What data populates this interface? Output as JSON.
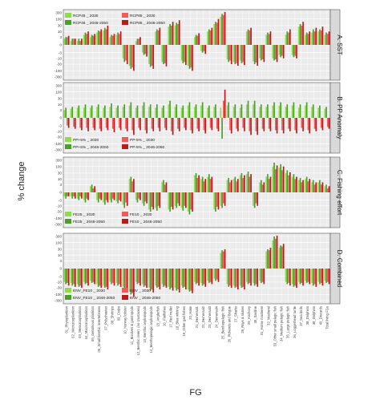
{
  "chart_data": {
    "type": "bar",
    "ylabel": "% change",
    "xlabel": "FG",
    "y_scale": "pseudo-log",
    "y_ticks": [
      300,
      100,
      30,
      10,
      3,
      0,
      -3,
      -10,
      -30,
      -100,
      -300
    ],
    "y_tick_labels": [
      "300",
      "100",
      "30",
      "10",
      "3",
      "0",
      "-3",
      "-10",
      "-30",
      "-100",
      "-300"
    ],
    "categories": [
      "01_Phytoplankton",
      "02_Microzooplankton",
      "03_Mesozooplankton",
      "04_Macrozooplankton",
      "05_Gelatinous plankton",
      "06_Small benthic invertebrates",
      "07_Polychaetes",
      "08_Shrimps",
      "09_Crabs",
      "10_Norway lobster",
      "11_Bivalves & gastropods",
      "12_Benthic invert. (no crustacea)",
      "13_Benthic cephalopods",
      "14_Benthopelagic cephalopods",
      "15_Anglerfish",
      "16_Flatfishes",
      "17_Red mullet",
      "18_Blue whiting",
      "19_Other gad fishes",
      "20_Hake",
      "21_Demersal1",
      "22_Demersal2",
      "23_Demersal3",
      "24_Demersal4",
      "25_Benthopelagic fish",
      "26_Pickerels and Bogue",
      "27_Sharks",
      "28_Rays & skates",
      "29_Anchovy",
      "30_Sardine",
      "31_Horse mackerel",
      "32_Mackerel",
      "33_Other small pelagic fish",
      "34_Medium pelagic fish",
      "35_Large pelagic fish",
      "36_Loggerhead turtle",
      "37_Sea birds",
      "38_Dolphins",
      "39_Dolphins",
      "40_Discards",
      "Total living FGs"
    ],
    "panels": [
      {
        "strip": "A. SST",
        "legend": {
          "entries": [
            "RCP45 _ 2030",
            "RCP45 _ 2046-2050",
            "RCP85 _ 2030",
            "RCP85 _ 2046-2050"
          ],
          "colors": [
            "#8edb4c",
            "#4a9e2a",
            "#ef5b5b",
            "#bb1a1a"
          ]
        },
        "series": [
          {
            "name": "RCP45 _ 2030",
            "values": [
              2,
              1,
              1,
              5,
              3,
              8,
              12,
              3,
              5,
              -10,
              -40,
              1,
              -3,
              -30,
              10,
              -20,
              25,
              30,
              -15,
              -40,
              3,
              -2,
              10,
              40,
              150,
              -12,
              -20,
              -15,
              10,
              -18,
              -10,
              5,
              -10,
              -5,
              5,
              -5,
              25,
              5,
              8,
              10,
              5
            ]
          },
          {
            "name": "RCP45 _ 2046-2050",
            "values": [
              3,
              2,
              2,
              8,
              5,
              12,
              20,
              5,
              8,
              -20,
              -70,
              2,
              -5,
              -50,
              15,
              -30,
              40,
              50,
              -25,
              -70,
              5,
              -3,
              15,
              60,
              250,
              -20,
              -30,
              -25,
              15,
              -30,
              -15,
              8,
              -15,
              -8,
              10,
              -8,
              40,
              8,
              15,
              15,
              8
            ]
          },
          {
            "name": "RCP85 _ 2030",
            "values": [
              3,
              2,
              1,
              6,
              4,
              10,
              15,
              4,
              6,
              -15,
              -55,
              2,
              -4,
              -40,
              12,
              -25,
              30,
              40,
              -20,
              -55,
              4,
              -2,
              12,
              50,
              200,
              -15,
              -25,
              -20,
              12,
              -22,
              -12,
              6,
              -12,
              -6,
              8,
              -6,
              30,
              6,
              10,
              12,
              6
            ]
          },
          {
            "name": "RCP85 _ 2046-2050",
            "values": [
              4,
              2,
              2,
              10,
              6,
              15,
              30,
              6,
              10,
              -30,
              -100,
              3,
              -7,
              -70,
              20,
              -45,
              60,
              80,
              -35,
              -100,
              7,
              -4,
              20,
              100,
              350,
              -30,
              -40,
              -35,
              20,
              -40,
              -20,
              10,
              -20,
              -10,
              15,
              -10,
              60,
              10,
              20,
              25,
              10
            ]
          }
        ]
      },
      {
        "strip": "B. PP Anomaly",
        "legend": {
          "entries": [
            "PP+5% _ 2030",
            "PP+5% _ 2046-2050",
            "PP-5% _ 2030",
            "PP-5% _ 2046-2050"
          ],
          "colors": [
            "#8edb4c",
            "#4a9e2a",
            "#ef5b5b",
            "#bb1a1a"
          ]
        },
        "series": [
          {
            "name": "PP+5% _ 2030",
            "values": [
              3,
              4,
              5,
              5,
              5,
              6,
              5,
              6,
              5,
              6,
              8,
              5,
              8,
              6,
              5,
              5,
              10,
              6,
              5,
              8,
              6,
              8,
              5,
              6,
              5,
              8,
              6,
              5,
              10,
              10,
              6,
              6,
              8,
              8,
              6,
              8,
              5,
              8,
              6,
              5,
              4
            ]
          },
          {
            "name": "PP+5% _ 2046-2050",
            "values": [
              5,
              6,
              8,
              10,
              8,
              10,
              8,
              12,
              8,
              10,
              15,
              8,
              15,
              10,
              10,
              8,
              20,
              10,
              8,
              15,
              10,
              15,
              8,
              10,
              -40,
              15,
              10,
              10,
              20,
              20,
              10,
              10,
              15,
              15,
              10,
              15,
              10,
              15,
              10,
              8,
              6
            ]
          },
          {
            "name": "PP-5% _ 2030",
            "values": [
              -3,
              -4,
              -5,
              -5,
              -5,
              -6,
              -5,
              -6,
              -5,
              -6,
              -8,
              -5,
              -8,
              -6,
              -5,
              -5,
              -10,
              -6,
              -5,
              -8,
              -6,
              -8,
              -5,
              -6,
              20,
              -8,
              -6,
              -5,
              -10,
              -10,
              -6,
              -6,
              -8,
              -8,
              -6,
              -8,
              -5,
              -8,
              -6,
              -5,
              -4
            ]
          },
          {
            "name": "PP-5% _ 2046-2050",
            "values": [
              -5,
              -6,
              -8,
              -10,
              -8,
              -10,
              -8,
              -12,
              -8,
              -10,
              -20,
              -8,
              -15,
              -10,
              -10,
              -8,
              -20,
              -10,
              -8,
              -15,
              -10,
              -15,
              -8,
              -10,
              150,
              -15,
              -10,
              -10,
              -20,
              -20,
              -10,
              -10,
              -15,
              -15,
              -10,
              -15,
              -10,
              -15,
              -10,
              -8,
              -6
            ]
          }
        ]
      },
      {
        "strip": "C. Fishing effort",
        "legend": {
          "entries": [
            "FE25 _ 2030",
            "FE25 _ 2046-2050",
            "FE10 _ 2030",
            "FE10 _ 2046-2050"
          ],
          "colors": [
            "#8edb4c",
            "#4a9e2a",
            "#ef5b5b",
            "#bb1a1a"
          ]
        },
        "series": [
          {
            "name": "FE25 _ 2030",
            "values": [
              -1,
              -1,
              -2,
              -3,
              2,
              -3,
              -5,
              -3,
              -4,
              -8,
              10,
              -3,
              -6,
              -20,
              -15,
              5,
              -20,
              -10,
              -15,
              -30,
              20,
              10,
              15,
              -20,
              -10,
              8,
              10,
              20,
              25,
              -10,
              5,
              15,
              100,
              80,
              30,
              15,
              8,
              10,
              5,
              5,
              2
            ]
          },
          {
            "name": "FE25 _ 2046-2050",
            "values": [
              -2,
              -2,
              -3,
              -5,
              3,
              -5,
              -8,
              -5,
              -6,
              -15,
              15,
              -5,
              -10,
              -30,
              -25,
              8,
              -30,
              -15,
              -25,
              -50,
              30,
              15,
              25,
              -30,
              -15,
              12,
              15,
              30,
              40,
              -15,
              8,
              25,
              200,
              150,
              50,
              25,
              12,
              15,
              8,
              8,
              3
            ]
          },
          {
            "name": "FE10 _ 2030",
            "values": [
              -1,
              -1,
              -1,
              -2,
              1,
              -2,
              -3,
              -2,
              -3,
              -5,
              6,
              -2,
              -4,
              -12,
              -10,
              3,
              -12,
              -6,
              -10,
              -20,
              12,
              6,
              10,
              -12,
              -6,
              5,
              6,
              12,
              15,
              -6,
              3,
              10,
              60,
              50,
              20,
              10,
              5,
              6,
              3,
              3,
              1
            ]
          },
          {
            "name": "FE10 _ 2046-2050",
            "values": [
              -1,
              -2,
              -2,
              -3,
              2,
              -3,
              -5,
              -3,
              -4,
              -10,
              10,
              -3,
              -6,
              -20,
              -15,
              5,
              -20,
              -10,
              -15,
              -30,
              20,
              10,
              15,
              -20,
              -10,
              8,
              10,
              20,
              25,
              -10,
              5,
              15,
              120,
              100,
              35,
              15,
              8,
              10,
              5,
              5,
              2
            ]
          }
        ]
      },
      {
        "strip": "D. Combined",
        "legend": {
          "entries": [
            "ENV_FE10 _ 2030",
            "ENV_FE10 _ 2046-2050",
            "ENV _ 2030",
            "ENV _ 2046-2050"
          ],
          "colors": [
            "#8edb4c",
            "#4a9e2a",
            "#ef5b5b",
            "#bb1a1a"
          ]
        },
        "series": [
          {
            "name": "ENV_FE10 _ 2030",
            "values": [
              -10,
              -12,
              -15,
              -10,
              -8,
              -15,
              -20,
              -10,
              -12,
              -25,
              -60,
              -10,
              -15,
              -30,
              -20,
              -15,
              -25,
              -30,
              -20,
              -40,
              -10,
              -12,
              -8,
              -5,
              15,
              -15,
              -20,
              -20,
              -10,
              -12,
              -8,
              20,
              150,
              40,
              -10,
              -15,
              -10,
              -8,
              -12,
              -10,
              -8
            ]
          },
          {
            "name": "ENV_FE10 _ 2046-2050",
            "values": [
              -15,
              -20,
              -25,
              -15,
              -12,
              -25,
              -30,
              -15,
              -20,
              -40,
              -100,
              -15,
              -25,
              -50,
              -30,
              -25,
              -40,
              -50,
              -30,
              -60,
              -15,
              -20,
              -12,
              -8,
              25,
              -25,
              -30,
              -30,
              -15,
              -20,
              -12,
              30,
              300,
              60,
              -15,
              -25,
              -15,
              -12,
              -20,
              -15,
              -12
            ]
          },
          {
            "name": "ENV _ 2030",
            "values": [
              -12,
              -15,
              -20,
              -12,
              -10,
              -20,
              -25,
              -12,
              -15,
              -30,
              -80,
              -12,
              -20,
              -40,
              -25,
              -20,
              -30,
              -40,
              -25,
              -50,
              -12,
              -15,
              -10,
              -6,
              20,
              -20,
              -25,
              -25,
              -12,
              -15,
              -10,
              25,
              200,
              50,
              -12,
              -20,
              -12,
              -10,
              -15,
              -12,
              -10
            ]
          },
          {
            "name": "ENV _ 2046-2050",
            "values": [
              -20,
              -25,
              -30,
              -20,
              -15,
              -30,
              -40,
              -20,
              -25,
              -50,
              -150,
              -20,
              -30,
              -70,
              -40,
              -30,
              -50,
              -70,
              -40,
              -80,
              -20,
              -25,
              -15,
              -10,
              30,
              -30,
              -40,
              -40,
              -20,
              -25,
              -15,
              40,
              350,
              80,
              -20,
              -30,
              -20,
              -15,
              -25,
              -20,
              -15
            ]
          }
        ]
      }
    ]
  }
}
